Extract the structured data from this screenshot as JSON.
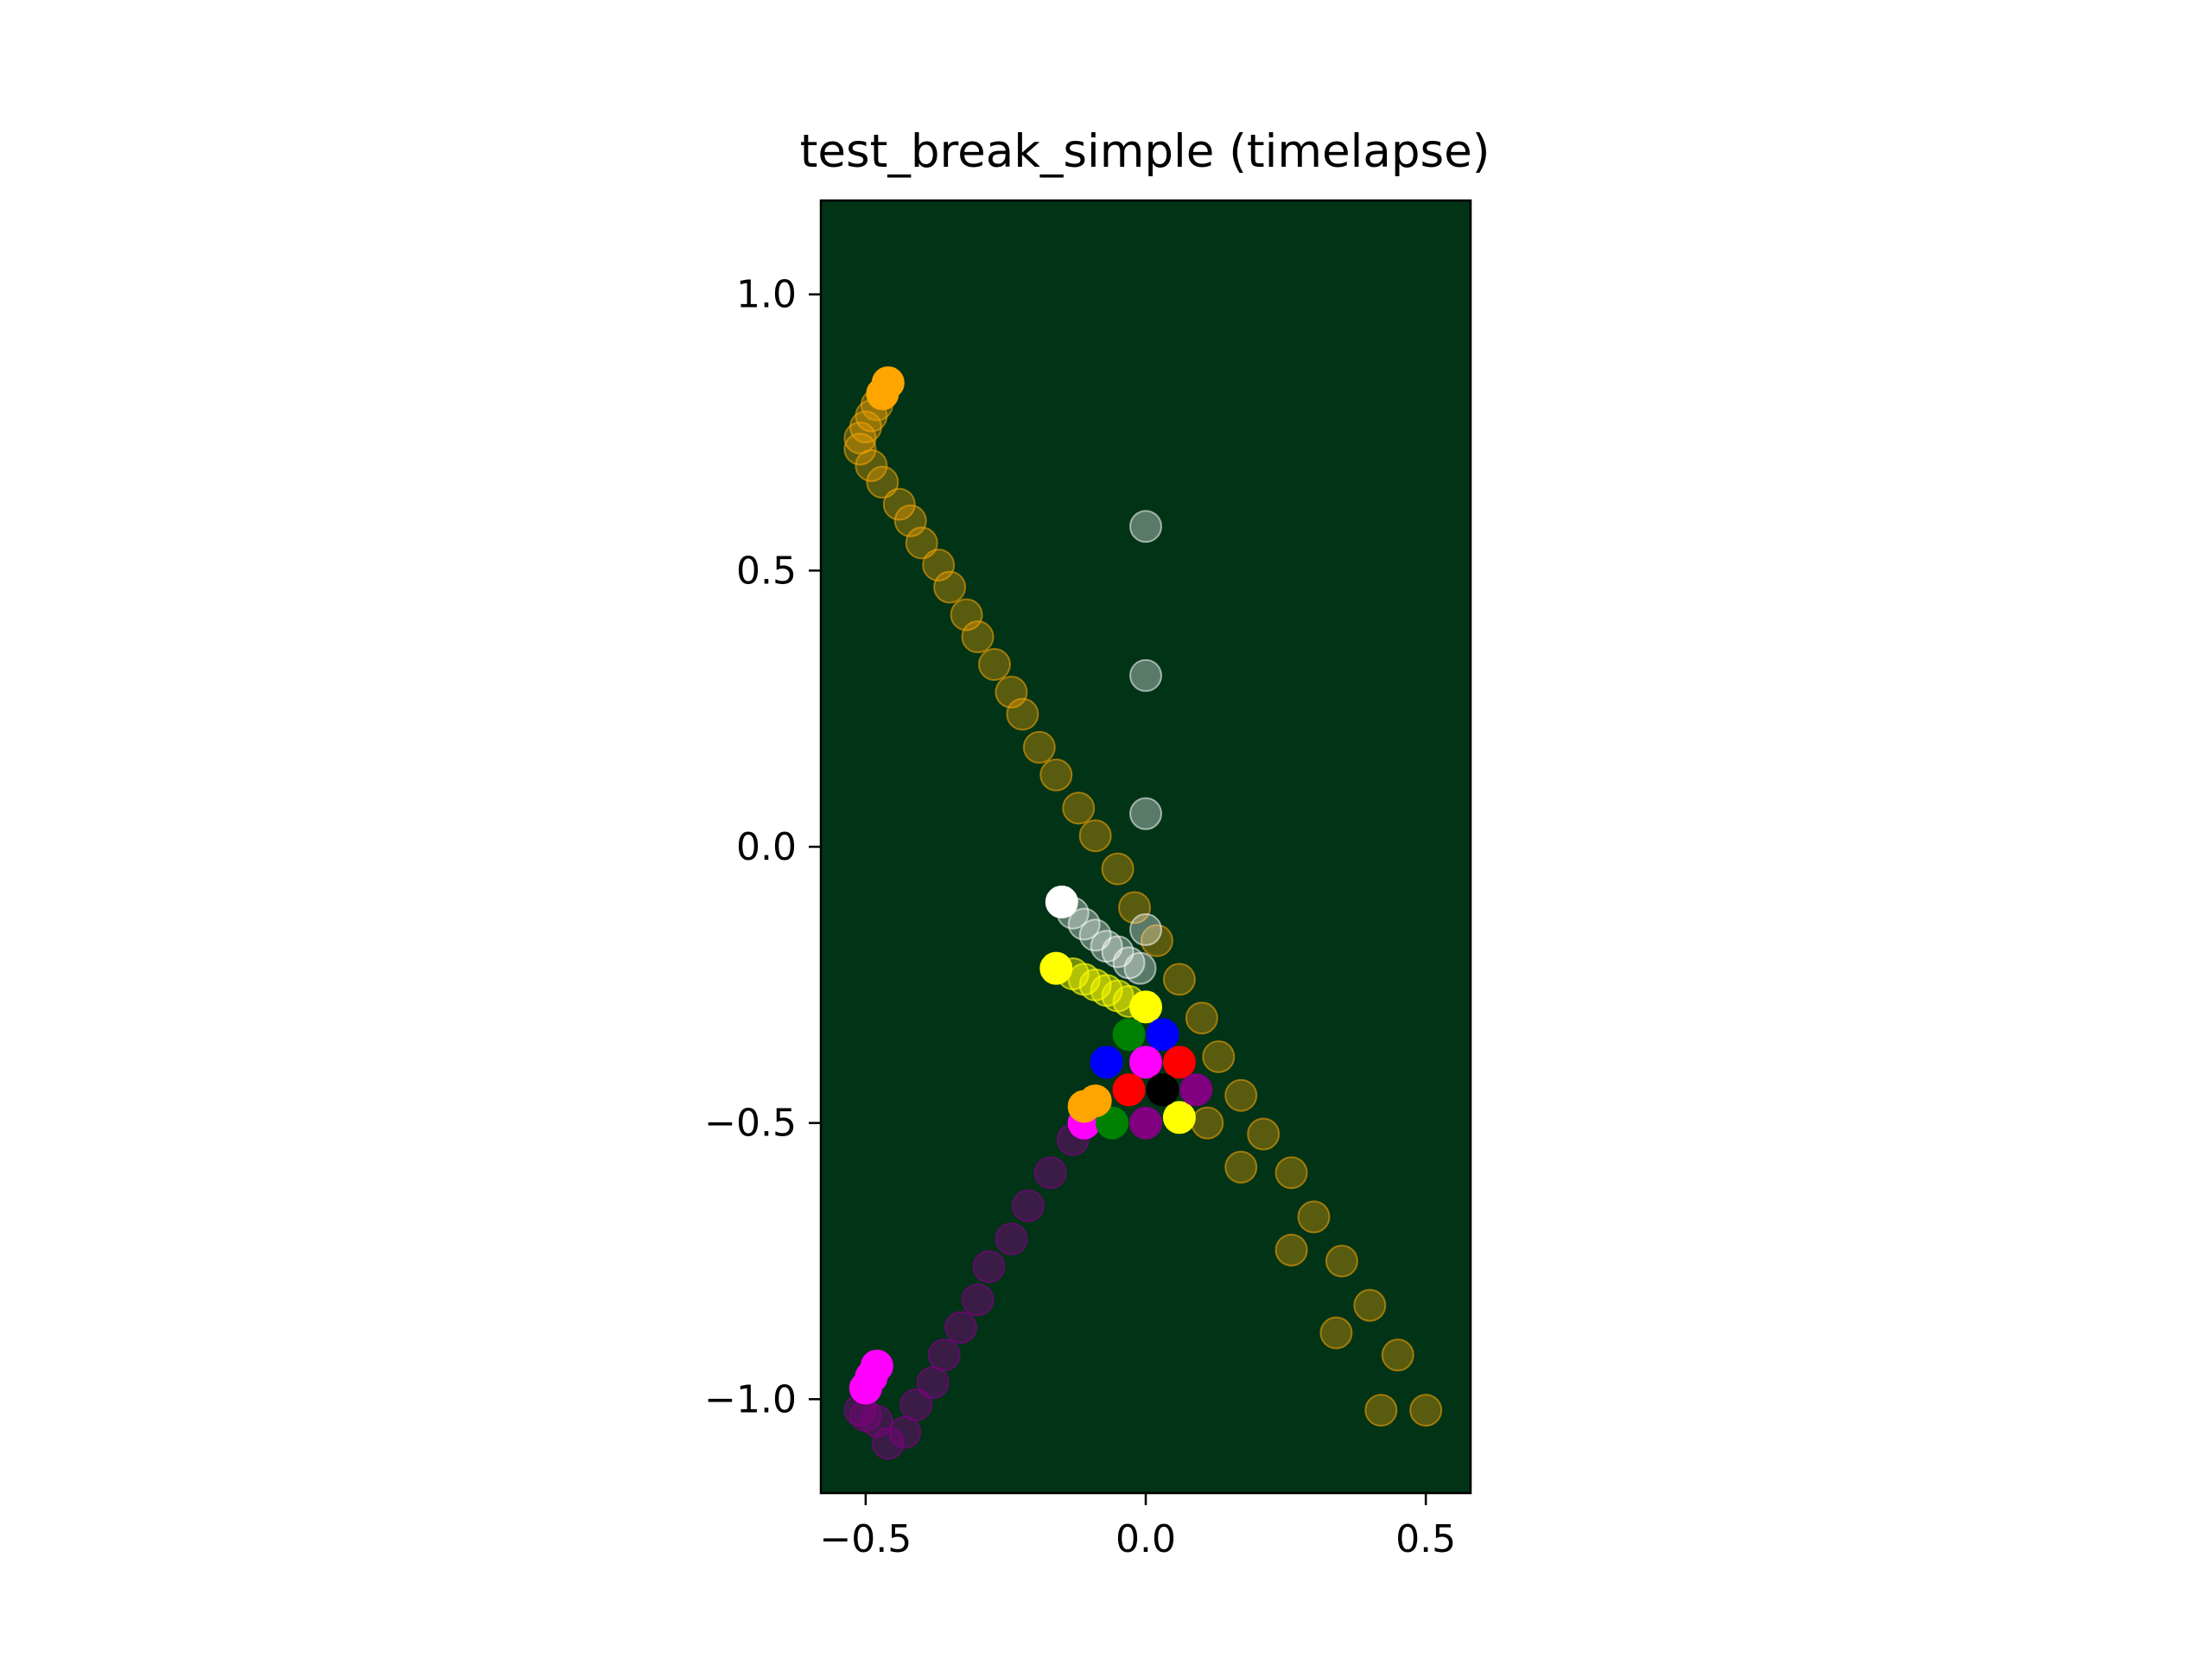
{
  "chart_data": {
    "type": "scatter",
    "title": "test_break_simple (timelapse)",
    "xlabel": "",
    "ylabel": "",
    "xlim": [
      -0.58,
      0.58
    ],
    "ylim": [
      -1.17,
      1.17
    ],
    "xticks": [
      {
        "value": -0.5,
        "label": "−0.5"
      },
      {
        "value": 0.0,
        "label": "0.0"
      },
      {
        "value": 0.5,
        "label": "0.5"
      }
    ],
    "yticks": [
      {
        "value": 1.0,
        "label": "1.0"
      },
      {
        "value": 0.5,
        "label": "0.5"
      },
      {
        "value": 0.0,
        "label": "0.0"
      },
      {
        "value": -0.5,
        "label": "−0.5"
      },
      {
        "value": -1.0,
        "label": "−1.0"
      }
    ],
    "grid": false,
    "plot_background": "#013317",
    "series": [
      {
        "color": "#ffa500",
        "opacity": 0.35,
        "points": [
          [
            -0.48,
            0.8
          ],
          [
            -0.49,
            0.78
          ],
          [
            -0.5,
            0.76
          ],
          [
            -0.51,
            0.74
          ],
          [
            -0.51,
            0.72
          ],
          [
            -0.49,
            0.69
          ],
          [
            -0.47,
            0.66
          ],
          [
            -0.44,
            0.62
          ],
          [
            -0.42,
            0.59
          ],
          [
            -0.4,
            0.55
          ],
          [
            -0.37,
            0.51
          ],
          [
            -0.35,
            0.47
          ],
          [
            -0.32,
            0.42
          ],
          [
            -0.3,
            0.38
          ],
          [
            -0.27,
            0.33
          ],
          [
            -0.24,
            0.28
          ],
          [
            -0.22,
            0.24
          ],
          [
            -0.19,
            0.18
          ],
          [
            -0.16,
            0.13
          ],
          [
            -0.12,
            0.07
          ],
          [
            -0.09,
            0.02
          ],
          [
            -0.05,
            -0.04
          ],
          [
            -0.02,
            -0.11
          ],
          [
            0.02,
            -0.17
          ],
          [
            0.06,
            -0.24
          ],
          [
            0.1,
            -0.31
          ],
          [
            0.13,
            -0.38
          ],
          [
            0.17,
            -0.45
          ],
          [
            0.21,
            -0.52
          ],
          [
            0.26,
            -0.59
          ],
          [
            0.3,
            -0.67
          ],
          [
            0.35,
            -0.75
          ],
          [
            0.4,
            -0.83
          ],
          [
            0.45,
            -0.92
          ],
          [
            0.5,
            -1.02
          ]
        ]
      },
      {
        "color": "#ffa500",
        "opacity": 1.0,
        "points": [
          [
            -0.46,
            0.84
          ],
          [
            -0.47,
            0.82
          ]
        ]
      },
      {
        "color": "#ffa500",
        "opacity": 0.35,
        "points": [
          [
            0.11,
            -0.5
          ],
          [
            0.17,
            -0.58
          ],
          [
            0.26,
            -0.73
          ],
          [
            0.34,
            -0.88
          ],
          [
            0.42,
            -1.02
          ]
        ]
      },
      {
        "color": "#800080",
        "opacity": 0.45,
        "points": [
          [
            -0.48,
            -1.04
          ],
          [
            -0.5,
            -1.03
          ],
          [
            -0.51,
            -1.02
          ],
          [
            -0.46,
            -1.08
          ],
          [
            -0.43,
            -1.06
          ],
          [
            -0.41,
            -1.01
          ],
          [
            -0.38,
            -0.97
          ],
          [
            -0.36,
            -0.92
          ],
          [
            -0.33,
            -0.87
          ],
          [
            -0.3,
            -0.82
          ],
          [
            -0.28,
            -0.76
          ],
          [
            -0.24,
            -0.71
          ],
          [
            -0.21,
            -0.65
          ],
          [
            -0.17,
            -0.59
          ],
          [
            -0.13,
            -0.53
          ]
        ]
      },
      {
        "color": "#ff00ff",
        "opacity": 1.0,
        "points": [
          [
            -0.48,
            -0.94
          ],
          [
            -0.49,
            -0.96
          ],
          [
            -0.5,
            -0.98
          ],
          [
            -0.11,
            -0.5
          ]
        ]
      },
      {
        "color": "#ffffff",
        "opacity": 0.35,
        "points": [
          [
            0.0,
            0.58
          ],
          [
            0.0,
            0.31
          ],
          [
            0.0,
            0.06
          ],
          [
            0.0,
            -0.15
          ],
          [
            -0.13,
            -0.12
          ],
          [
            -0.11,
            -0.14
          ],
          [
            -0.09,
            -0.16
          ],
          [
            -0.07,
            -0.18
          ],
          [
            -0.05,
            -0.19
          ],
          [
            -0.03,
            -0.21
          ],
          [
            -0.01,
            -0.22
          ]
        ]
      },
      {
        "color": "#ffffff",
        "opacity": 1.0,
        "points": [
          [
            -0.15,
            -0.1
          ]
        ]
      },
      {
        "color": "#ffff00",
        "opacity": 0.45,
        "points": [
          [
            -0.13,
            -0.23
          ],
          [
            -0.11,
            -0.24
          ],
          [
            -0.09,
            -0.25
          ],
          [
            -0.07,
            -0.26
          ],
          [
            -0.05,
            -0.27
          ],
          [
            -0.03,
            -0.28
          ]
        ]
      },
      {
        "color": "#ffff00",
        "opacity": 1.0,
        "points": [
          [
            -0.16,
            -0.22
          ],
          [
            0.0,
            -0.29
          ],
          [
            0.06,
            -0.49
          ]
        ]
      },
      {
        "color": "#008000",
        "opacity": 1.0,
        "points": [
          [
            -0.03,
            -0.34
          ],
          [
            -0.06,
            -0.5
          ]
        ]
      },
      {
        "color": "#0000ff",
        "opacity": 1.0,
        "points": [
          [
            0.03,
            -0.34
          ],
          [
            -0.07,
            -0.39
          ]
        ]
      },
      {
        "color": "#ff00ff",
        "opacity": 1.0,
        "points": [
          [
            0.0,
            -0.39
          ]
        ]
      },
      {
        "color": "#ff0000",
        "opacity": 1.0,
        "points": [
          [
            0.06,
            -0.39
          ],
          [
            -0.03,
            -0.44
          ]
        ]
      },
      {
        "color": "#000000",
        "opacity": 1.0,
        "points": [
          [
            0.03,
            -0.44
          ]
        ]
      },
      {
        "color": "#800080",
        "opacity": 1.0,
        "points": [
          [
            0.09,
            -0.44
          ],
          [
            0.0,
            -0.5
          ]
        ]
      },
      {
        "color": "#ffa500",
        "opacity": 1.0,
        "points": [
          [
            -0.09,
            -0.46
          ],
          [
            -0.11,
            -0.47
          ]
        ]
      }
    ]
  }
}
